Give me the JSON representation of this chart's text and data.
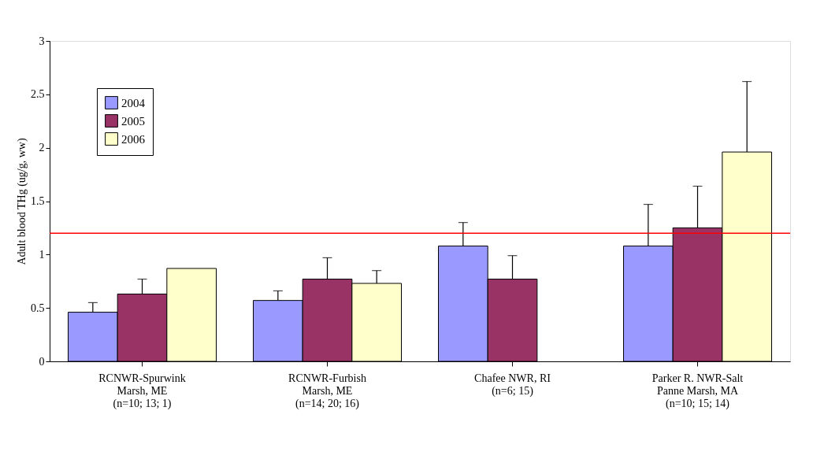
{
  "chart_data": {
    "type": "bar",
    "ylabel": "Adult blood THg (ug/g, ww)",
    "categories": [
      "RCNWR-Spurwink\nMarsh, ME\n(n=10; 13; 1)",
      "RCNWR-Furbish\nMarsh, ME\n(n=14; 20; 16)",
      "Chafee NWR, RI\n(n=6; 15)",
      "Parker R. NWR-Salt\nPanne Marsh, MA\n(n=10; 15; 14)"
    ],
    "series": [
      {
        "name": "2004",
        "color": "#9999ff",
        "values": [
          0.46,
          0.57,
          1.08,
          1.08
        ],
        "errors": [
          [
            0.46,
            0.55
          ],
          [
            0.57,
            0.66
          ],
          [
            1.08,
            1.3
          ],
          [
            1.08,
            1.47
          ]
        ]
      },
      {
        "name": "2005",
        "color": "#993366",
        "values": [
          0.63,
          0.77,
          0.77,
          1.25
        ],
        "errors": [
          [
            0.63,
            0.77
          ],
          [
            0.77,
            0.97
          ],
          [
            0.77,
            0.99
          ],
          [
            1.25,
            1.64
          ]
        ]
      },
      {
        "name": "2006",
        "color": "#ffffcc",
        "values": [
          0.87,
          0.73,
          null,
          1.96
        ],
        "errors": [
          null,
          [
            0.73,
            0.85
          ],
          null,
          [
            1.96,
            2.62
          ]
        ]
      }
    ],
    "ylim": [
      0,
      3
    ],
    "yticks": [
      0,
      0.5,
      1,
      1.5,
      2,
      2.5,
      3
    ],
    "ref_lines": [
      {
        "axis": "y",
        "value": 1.2,
        "color": "#ff0000"
      }
    ],
    "grid": false,
    "legend": "top left"
  }
}
